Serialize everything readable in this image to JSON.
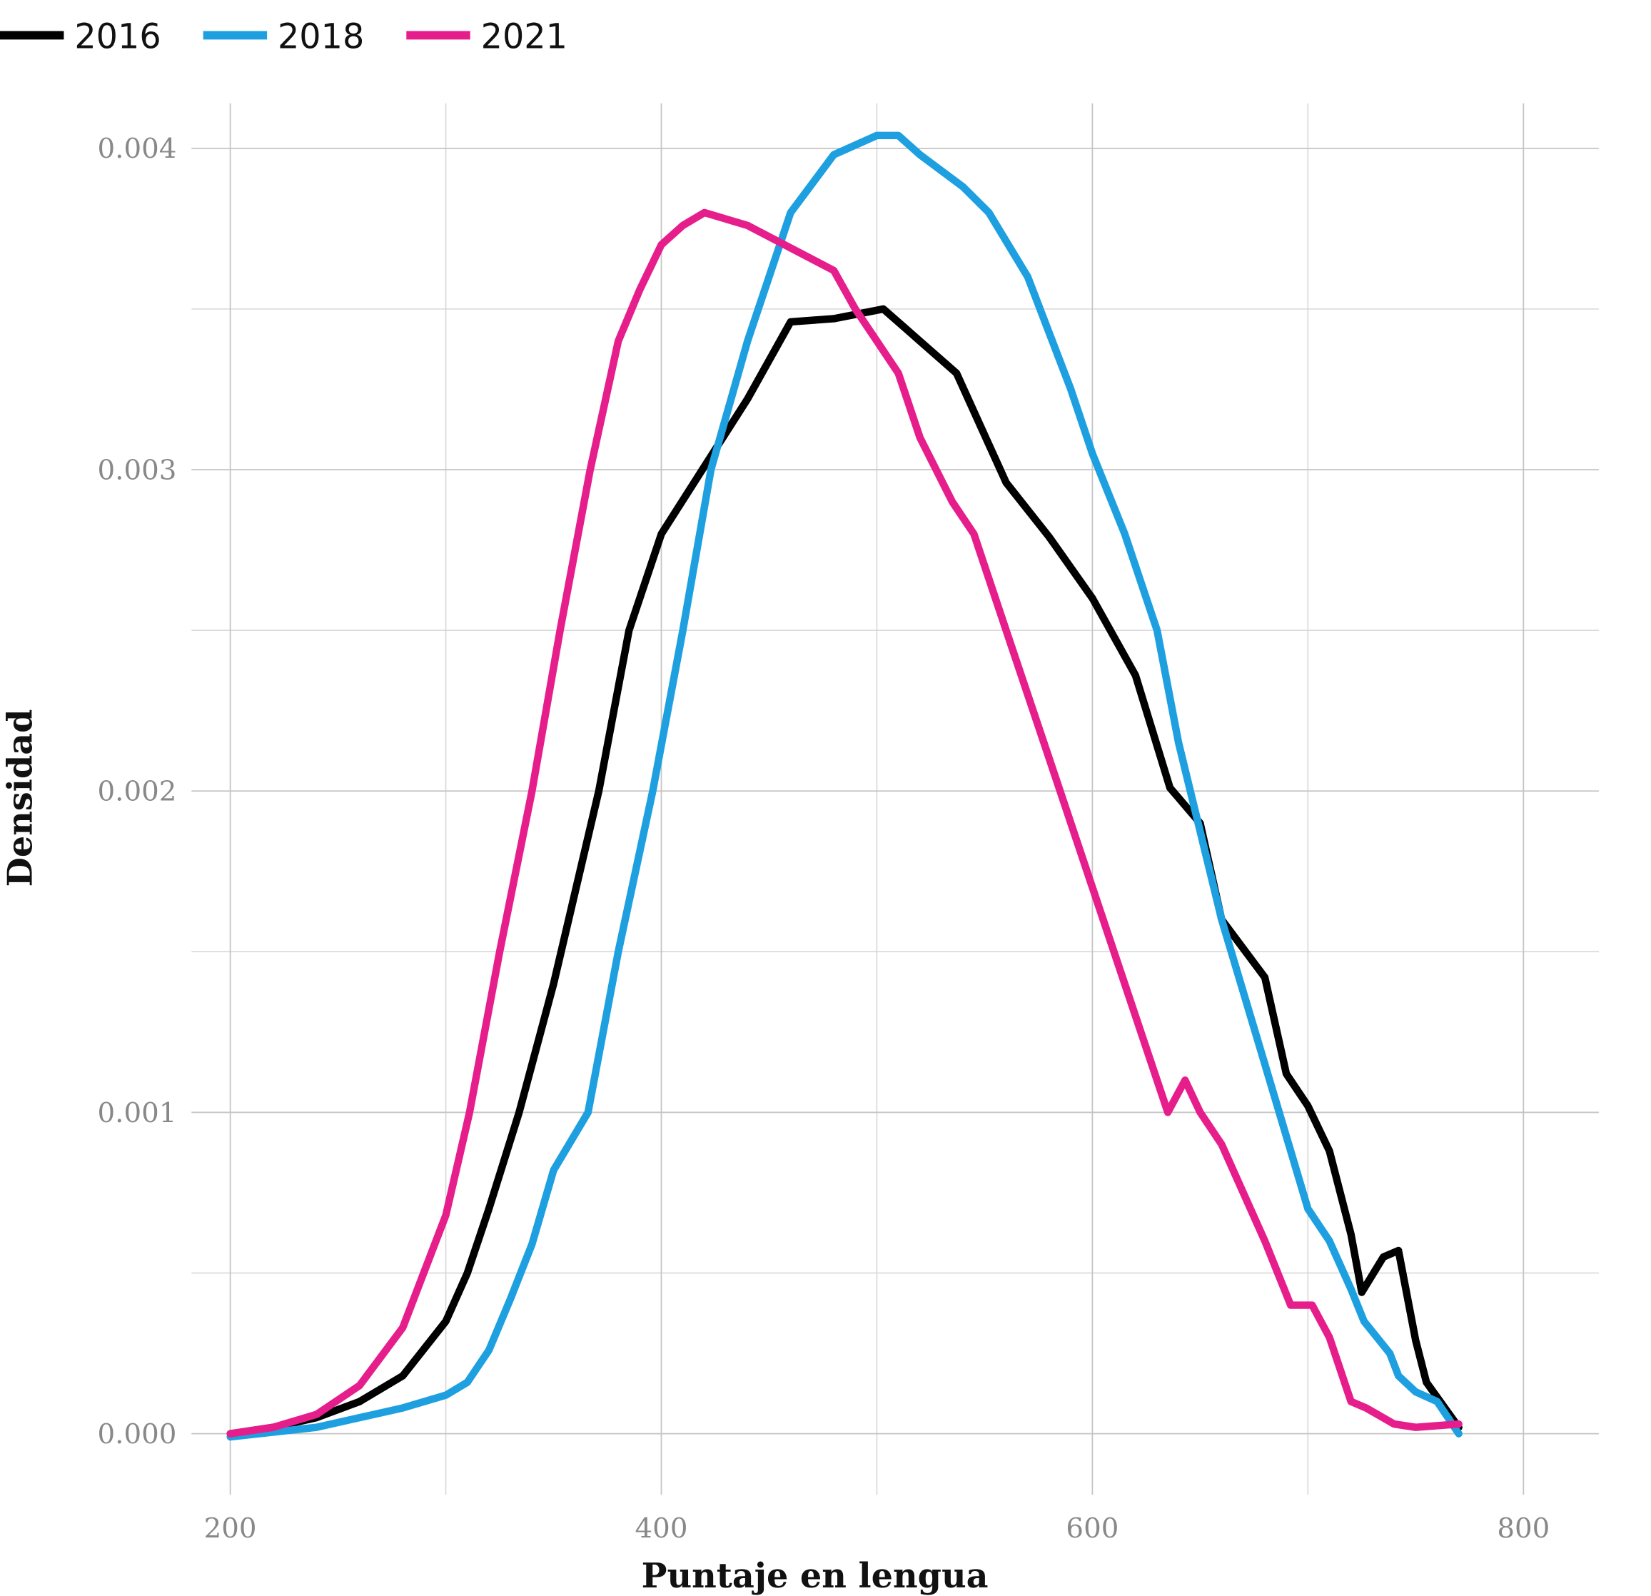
{
  "chart_data": {
    "type": "line",
    "xlabel": "Puntaje en lengua",
    "ylabel": "Densidad",
    "xlim": [
      182,
      835
    ],
    "ylim": [
      -0.00019,
      0.00414
    ],
    "xticks": [
      200,
      400,
      600,
      800
    ],
    "minor_xticks": [
      300,
      500,
      700
    ],
    "yticks": [
      {
        "value": 0,
        "label": "0.000"
      },
      {
        "value": 0.001,
        "label": "0.001"
      },
      {
        "value": 0.002,
        "label": "0.002"
      },
      {
        "value": 0.003,
        "label": "0.003"
      },
      {
        "value": 0.004,
        "label": "0.004"
      }
    ],
    "minor_yticks": [
      0.0005,
      0.0015,
      0.0025,
      0.0035
    ],
    "grid": true,
    "legend": "top-left",
    "series": [
      {
        "name": "2016",
        "color": "#000000",
        "x": [
          200,
          220,
          240,
          260,
          280,
          300,
          310,
          320,
          334,
          350,
          371,
          385,
          400,
          419,
          440,
          460,
          480,
          503,
          520,
          537,
          560,
          580,
          600,
          620,
          636,
          650,
          660,
          680,
          690,
          700,
          710,
          720,
          725,
          735,
          742,
          750,
          755,
          770
        ],
        "values": [
          0.0,
          2e-05,
          5e-05,
          0.0001,
          0.00018,
          0.00035,
          0.0005,
          0.0007,
          0.001,
          0.0014,
          0.002,
          0.0025,
          0.0028,
          0.003,
          0.00322,
          0.00346,
          0.00347,
          0.0035,
          0.0034,
          0.0033,
          0.00296,
          0.00279,
          0.0026,
          0.00236,
          0.00201,
          0.0019,
          0.0016,
          0.00142,
          0.00112,
          0.00102,
          0.00088,
          0.00062,
          0.00044,
          0.00055,
          0.00057,
          0.00029,
          0.00016,
          2e-05
        ]
      },
      {
        "name": "2018",
        "color": "#1ea0e0",
        "x": [
          200,
          240,
          280,
          300,
          310,
          320,
          330,
          340,
          350,
          366,
          380,
          396,
          410,
          423,
          440,
          460,
          480,
          500,
          510,
          520,
          540,
          552,
          570,
          590,
          600,
          615,
          630,
          640,
          660,
          680,
          700,
          710,
          720,
          726,
          738,
          742,
          750,
          760,
          770
        ],
        "values": [
          -1e-05,
          2e-05,
          8e-05,
          0.00012,
          0.00016,
          0.00026,
          0.00042,
          0.00059,
          0.00082,
          0.001,
          0.0015,
          0.002,
          0.0025,
          0.003,
          0.0034,
          0.0038,
          0.00398,
          0.00404,
          0.00404,
          0.00398,
          0.00388,
          0.0038,
          0.0036,
          0.00325,
          0.00305,
          0.0028,
          0.0025,
          0.00215,
          0.0016,
          0.00115,
          0.0007,
          0.0006,
          0.00045,
          0.00035,
          0.00025,
          0.00018,
          0.00013,
          0.0001,
          0.0
        ]
      },
      {
        "name": "2021",
        "color": "#e61e8c",
        "x": [
          200,
          220,
          240,
          260,
          280,
          300,
          311,
          325,
          340,
          353,
          367,
          380,
          390,
          400,
          410,
          420,
          440,
          460,
          480,
          490,
          500,
          510,
          520,
          535,
          545,
          560,
          580,
          600,
          620,
          635,
          643,
          650,
          660,
          680,
          692,
          702,
          710,
          720,
          727,
          740,
          750,
          770
        ],
        "values": [
          0.0,
          2e-05,
          6e-05,
          0.00015,
          0.00033,
          0.00068,
          0.001,
          0.0015,
          0.002,
          0.0025,
          0.003,
          0.0034,
          0.00356,
          0.0037,
          0.00376,
          0.0038,
          0.00376,
          0.00369,
          0.00362,
          0.0035,
          0.0034,
          0.0033,
          0.0031,
          0.0029,
          0.0028,
          0.0025,
          0.0021,
          0.0017,
          0.0013,
          0.001,
          0.0011,
          0.001,
          0.0009,
          0.0006,
          0.0004,
          0.0004,
          0.0003,
          0.0001,
          8e-05,
          3e-05,
          2e-05,
          3e-05
        ]
      }
    ]
  }
}
